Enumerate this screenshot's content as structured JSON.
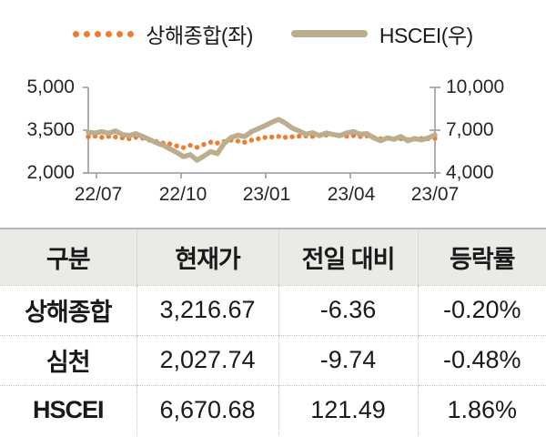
{
  "legend": {
    "shanghai_label": "상해종합(좌)",
    "hscei_label": "HSCEI(우)"
  },
  "colors": {
    "shanghai_orange": "#ED7D31",
    "hscei_tan": "#BCAD8E",
    "axis_gray": "#A6A6A6"
  },
  "chart_data": {
    "type": "line",
    "title": "",
    "x_ticks": [
      "22/07",
      "22/10",
      "23/01",
      "23/04",
      "23/07"
    ],
    "left_axis": {
      "label": "상해종합(좌)",
      "ticks": [
        "5,000",
        "3,500",
        "2,000"
      ],
      "min": 2000,
      "max": 5000
    },
    "right_axis": {
      "label": "HSCEI(우)",
      "ticks": [
        "10,000",
        "7,000",
        "4,000"
      ],
      "min": 4000,
      "max": 10000
    },
    "grid": false,
    "legend_position": "top",
    "series": [
      {
        "name": "상해종합(좌)",
        "axis": "left",
        "style": "dotted",
        "color": "#ED7D31",
        "values": [
          3270,
          3290,
          3250,
          3280,
          3260,
          3230,
          3200,
          3250,
          3220,
          3150,
          3100,
          3050,
          3020,
          2950,
          2890,
          2970,
          2900,
          3000,
          3080,
          3050,
          3100,
          3150,
          3120,
          3080,
          3150,
          3200,
          3240,
          3260,
          3280,
          3250,
          3270,
          3290,
          3300,
          3280,
          3310,
          3330,
          3350,
          3320,
          3290,
          3310,
          3280,
          3300,
          3250,
          3200,
          3230,
          3180,
          3200,
          3170,
          3190,
          3210,
          3200,
          3217
        ]
      },
      {
        "name": "HSCEI(우)",
        "axis": "right",
        "style": "solid",
        "color": "#BCAD8E",
        "values": [
          6850,
          6800,
          6900,
          6780,
          6950,
          6700,
          6620,
          6760,
          6560,
          6350,
          6120,
          5950,
          5700,
          5450,
          5150,
          5280,
          4900,
          5180,
          5500,
          5350,
          6080,
          6480,
          6650,
          6550,
          6900,
          7100,
          7320,
          7550,
          7760,
          7500,
          7150,
          6950,
          6720,
          6820,
          6620,
          6800,
          6700,
          6620,
          6800,
          6900,
          6720,
          6760,
          6460,
          6260,
          6460,
          6360,
          6560,
          6260,
          6420,
          6320,
          6460,
          6671
        ]
      }
    ]
  },
  "table": {
    "headers": [
      "구분",
      "현재가",
      "전일 대비",
      "등락률"
    ],
    "rows": [
      {
        "name": "상해종합",
        "price": "3,216.67",
        "change": "-6.36",
        "pct": "-0.20%"
      },
      {
        "name": "심천",
        "price": "2,027.74",
        "change": "-9.74",
        "pct": "-0.48%"
      },
      {
        "name": "HSCEI",
        "price": "6,670.68",
        "change": "121.49",
        "pct": "1.86%"
      }
    ]
  }
}
